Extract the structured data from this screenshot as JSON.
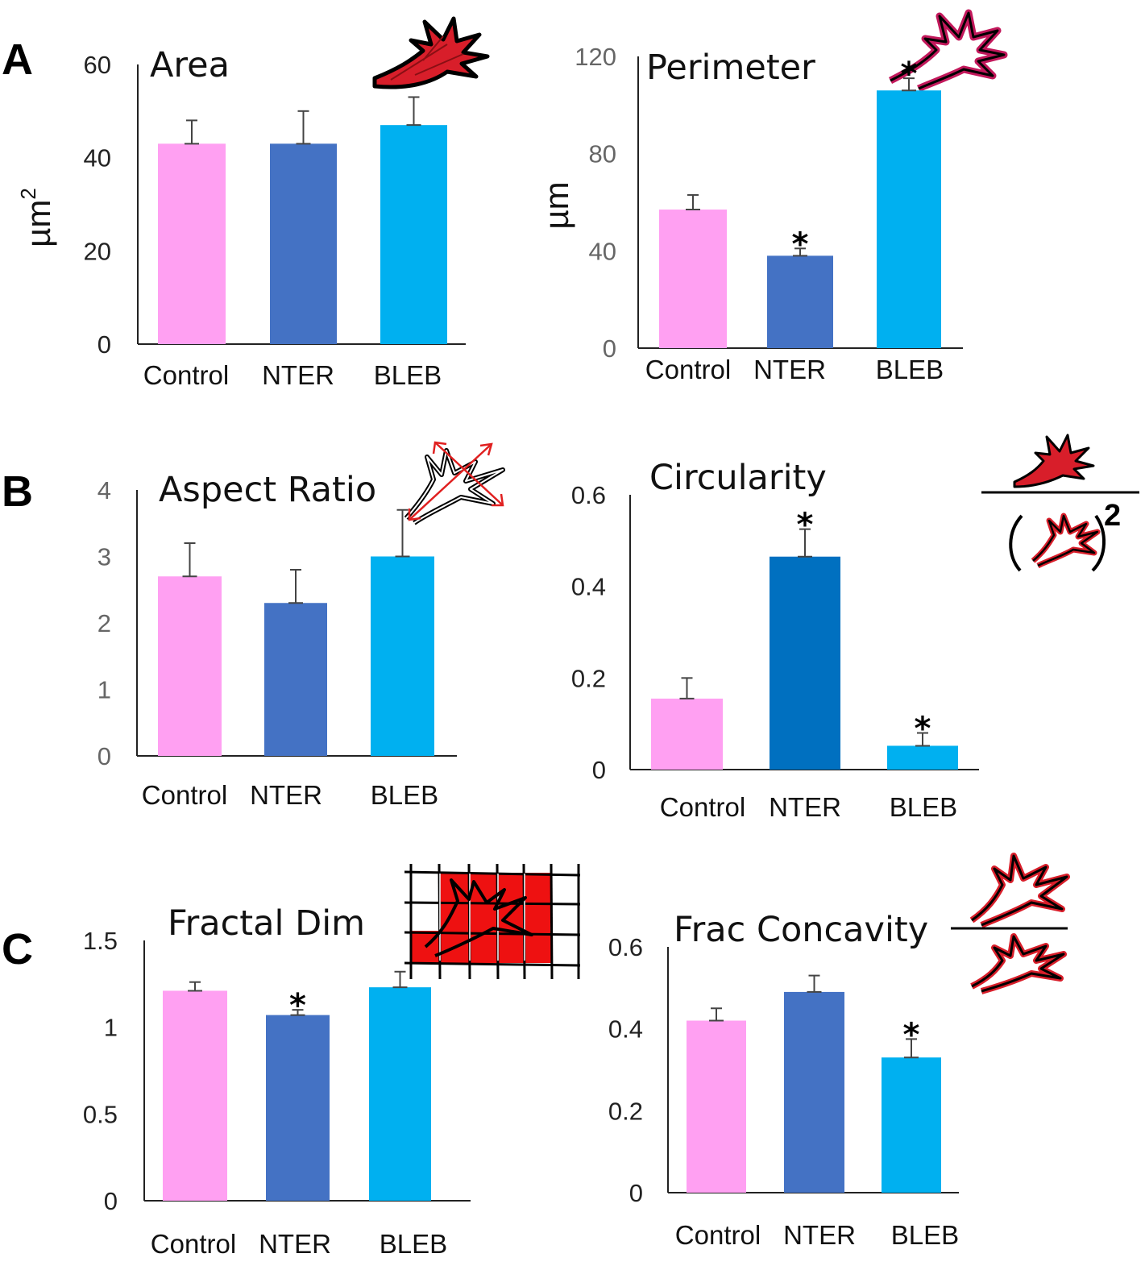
{
  "figure": {
    "panel_labels": [
      "A",
      "B",
      "C"
    ],
    "colors": {
      "Control": "#ffa0f2",
      "NTER": "#4472c4",
      "NTER_dark": "#0070c0",
      "BLEB": "#00b0f0"
    }
  },
  "chart_data": [
    {
      "type": "bar",
      "title": "Area",
      "ylabel": "µm",
      "ylabel_sup": "2",
      "categories": [
        "Control",
        "NTER",
        "BLEB"
      ],
      "values": [
        43,
        43,
        47
      ],
      "errors": [
        5,
        7,
        6
      ],
      "significant": [
        false,
        false,
        false
      ],
      "ylim": [
        0,
        60
      ],
      "yticks": [
        "0",
        "20",
        "40",
        "60"
      ],
      "ytick_values": [
        0,
        20,
        40,
        60
      ],
      "icon": "filled-cell-icon",
      "bar_colors": [
        "Control",
        "NTER",
        "BLEB"
      ]
    },
    {
      "type": "bar",
      "title": "Perimeter",
      "ylabel": "µm",
      "ylabel_sup": "",
      "categories": [
        "Control",
        "NTER",
        "BLEB"
      ],
      "values": [
        57,
        38,
        106
      ],
      "errors": [
        6,
        3,
        5
      ],
      "significant": [
        false,
        true,
        true
      ],
      "ylim": [
        0,
        120
      ],
      "yticks": [
        "0",
        "40",
        "80",
        "120"
      ],
      "ytick_values": [
        0,
        40,
        80,
        120
      ],
      "icon": "outlined-cell-icon",
      "bar_colors": [
        "Control",
        "NTER",
        "BLEB"
      ]
    },
    {
      "type": "bar",
      "title": "Aspect Ratio",
      "ylabel": "",
      "ylabel_sup": "",
      "categories": [
        "Control",
        "NTER",
        "BLEB"
      ],
      "values": [
        2.7,
        2.3,
        3.0
      ],
      "errors": [
        0.5,
        0.5,
        0.7
      ],
      "significant": [
        false,
        false,
        false
      ],
      "ylim": [
        0,
        4
      ],
      "yticks": [
        "0",
        "1",
        "2",
        "3",
        "4"
      ],
      "ytick_values": [
        0,
        1,
        2,
        3,
        4
      ],
      "icon": "cell-axes-icon",
      "bar_colors": [
        "Control",
        "NTER",
        "BLEB"
      ]
    },
    {
      "type": "bar",
      "title": "Circularity",
      "ylabel": "",
      "ylabel_sup": "",
      "categories": [
        "Control",
        "NTER",
        "BLEB"
      ],
      "values": [
        0.155,
        0.465,
        0.052
      ],
      "errors": [
        0.045,
        0.06,
        0.028
      ],
      "significant": [
        false,
        true,
        true
      ],
      "ylim": [
        0,
        0.6
      ],
      "yticks": [
        "0",
        "0.2",
        "0.4",
        "0.6"
      ],
      "ytick_values": [
        0,
        0.2,
        0.4,
        0.6
      ],
      "icon": "area-over-perimeter-squared-icon",
      "icon_exponent": "2",
      "bar_colors": [
        "Control",
        "NTER_dark",
        "BLEB"
      ]
    },
    {
      "type": "bar",
      "title": "Fractal Dim",
      "ylabel": "",
      "ylabel_sup": "",
      "categories": [
        "Control",
        "NTER",
        "BLEB"
      ],
      "values": [
        1.21,
        1.07,
        1.23
      ],
      "errors": [
        0.05,
        0.03,
        0.09
      ],
      "significant": [
        false,
        true,
        false
      ],
      "ylim": [
        0,
        1.5
      ],
      "yticks": [
        "0",
        "0.5",
        "1",
        "1.5"
      ],
      "ytick_values": [
        0,
        0.5,
        1,
        1.5
      ],
      "icon": "box-counting-grid-icon",
      "bar_colors": [
        "Control",
        "NTER",
        "BLEB"
      ]
    },
    {
      "type": "bar",
      "title": "Frac Concavity",
      "ylabel": "",
      "ylabel_sup": "",
      "categories": [
        "Control",
        "NTER",
        "BLEB"
      ],
      "values": [
        0.42,
        0.49,
        0.33
      ],
      "errors": [
        0.03,
        0.04,
        0.045
      ],
      "significant": [
        false,
        false,
        true
      ],
      "ylim": [
        0,
        0.6
      ],
      "yticks": [
        "0",
        "0.2",
        "0.4",
        "0.6"
      ],
      "ytick_values": [
        0,
        0.2,
        0.4,
        0.6
      ],
      "icon": "concavity-ratio-icon",
      "bar_colors": [
        "Control",
        "NTER",
        "BLEB"
      ]
    }
  ]
}
